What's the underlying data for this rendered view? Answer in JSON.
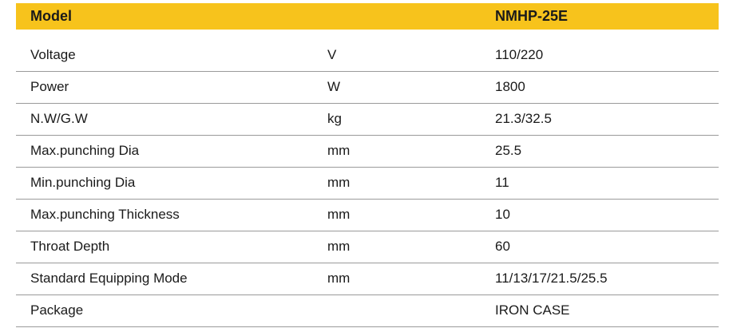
{
  "table": {
    "header": [
      "Model",
      "NMHP-25E"
    ],
    "rows": [
      [
        "Voltage",
        "V",
        "110/220"
      ],
      [
        "Power",
        "W",
        "1800"
      ],
      [
        "N.W/G.W",
        "kg",
        "21.3/32.5"
      ],
      [
        "Max.punching Dia",
        "mm",
        "25.5"
      ],
      [
        "Min.punching Dia",
        "mm",
        "11"
      ],
      [
        "Max.punching Thickness",
        "mm",
        "10"
      ],
      [
        "Throat Depth",
        "mm",
        "60"
      ],
      [
        "Standard Equipping Mode",
        "mm",
        "11/13/17/21.5/25.5"
      ],
      [
        "Package",
        null,
        "IRON CASE"
      ]
    ]
  }
}
